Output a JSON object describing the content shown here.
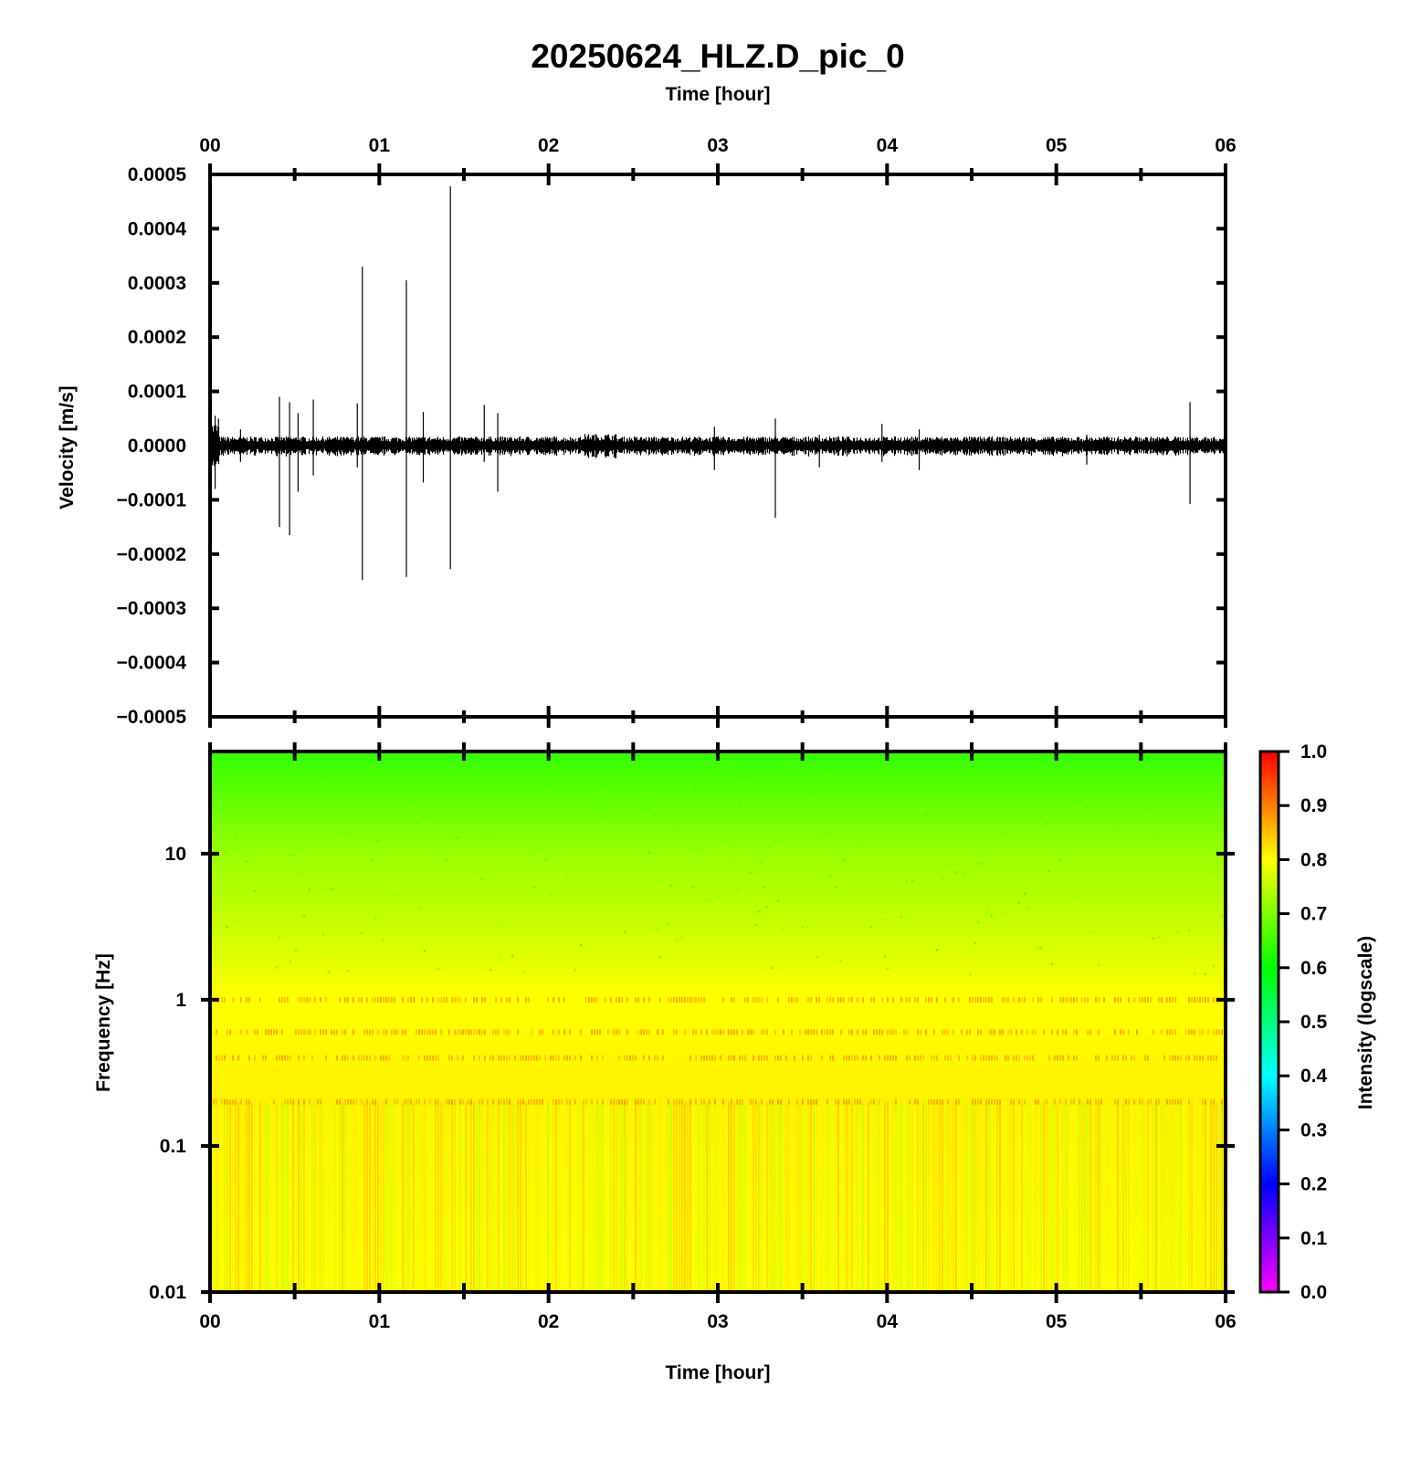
{
  "chart_data": [
    {
      "type": "line",
      "title": "20250624_HLZ.D_pic_0",
      "xlabel": "Time [hour]",
      "ylabel": "Velocity [m/s]",
      "xlim": [
        0,
        6
      ],
      "ylim": [
        -0.0005,
        0.0005
      ],
      "x_ticks": [
        "00",
        "01",
        "02",
        "03",
        "04",
        "05",
        "06"
      ],
      "y_ticks": [
        "0.0005",
        "0.0004",
        "0.0003",
        "0.0002",
        "0.0001",
        "0.0000",
        "−0.0001",
        "−0.0002",
        "−0.0003",
        "−0.0004",
        "−0.0005"
      ],
      "y_tick_values": [
        0.0005,
        0.0004,
        0.0003,
        0.0002,
        0.0001,
        0,
        -0.0001,
        -0.0002,
        -0.0003,
        -0.0004,
        -0.0005
      ],
      "noise_amplitude": 1.2e-05,
      "spikes": [
        {
          "x": 0.03,
          "ymax": 5.5e-05,
          "ymin": -8e-05
        },
        {
          "x": 0.05,
          "ymax": 5e-05,
          "ymin": -3e-05
        },
        {
          "x": 0.18,
          "ymax": 3e-05,
          "ymin": -3e-05
        },
        {
          "x": 0.41,
          "ymax": 9e-05,
          "ymin": -0.00015
        },
        {
          "x": 0.47,
          "ymax": 8e-05,
          "ymin": -0.000165
        },
        {
          "x": 0.52,
          "ymax": 6e-05,
          "ymin": -8.5e-05
        },
        {
          "x": 0.61,
          "ymax": 8.5e-05,
          "ymin": -5.5e-05
        },
        {
          "x": 0.87,
          "ymax": 7.8e-05,
          "ymin": -4e-05
        },
        {
          "x": 0.9,
          "ymax": 0.00033,
          "ymin": -0.000248
        },
        {
          "x": 1.16,
          "ymax": 0.000305,
          "ymin": -0.000242
        },
        {
          "x": 1.26,
          "ymax": 6.2e-05,
          "ymin": -6.8e-05
        },
        {
          "x": 1.42,
          "ymax": 0.000478,
          "ymin": -0.000228
        },
        {
          "x": 1.62,
          "ymax": 7.5e-05,
          "ymin": -3e-05
        },
        {
          "x": 1.7,
          "ymax": 6e-05,
          "ymin": -8.5e-05
        },
        {
          "x": 2.98,
          "ymax": 3.5e-05,
          "ymin": -4.5e-05
        },
        {
          "x": 3.34,
          "ymax": 5e-05,
          "ymin": -0.000133
        },
        {
          "x": 3.6,
          "ymax": 2e-05,
          "ymin": -4e-05
        },
        {
          "x": 3.97,
          "ymax": 4e-05,
          "ymin": -3e-05
        },
        {
          "x": 4.19,
          "ymax": 3e-05,
          "ymin": -4.5e-05
        },
        {
          "x": 5.18,
          "ymax": 2e-05,
          "ymin": -3.5e-05
        },
        {
          "x": 5.79,
          "ymax": 8e-05,
          "ymin": -0.000108
        }
      ]
    },
    {
      "type": "heatmap",
      "xlabel": "Time [hour]",
      "ylabel": "Frequency [Hz]",
      "xlim": [
        0,
        6
      ],
      "ylim": [
        0.01,
        50
      ],
      "yscale": "log",
      "x_ticks": [
        "00",
        "01",
        "02",
        "03",
        "04",
        "05",
        "06"
      ],
      "y_ticks": [
        "10",
        "1",
        "0.1",
        "0.01"
      ],
      "y_tick_values": [
        10,
        1,
        0.1,
        0.01
      ],
      "colorbar": {
        "label": "Intensity (logscale)",
        "range": [
          0,
          1
        ],
        "ticks": [
          "1.0",
          "0.9",
          "0.8",
          "0.7",
          "0.6",
          "0.5",
          "0.4",
          "0.3",
          "0.2",
          "0.1",
          "0.0"
        ],
        "tick_values": [
          1.0,
          0.9,
          0.8,
          0.7,
          0.6,
          0.5,
          0.4,
          0.3,
          0.2,
          0.1,
          0.0
        ],
        "colormap": [
          "#ff00ff",
          "#7f00ff",
          "#0000ff",
          "#007fff",
          "#00ffff",
          "#00ff7f",
          "#00ff00",
          "#7fff00",
          "#ffff00",
          "#ff7f00",
          "#ff0000"
        ]
      },
      "intensity_profile": [
        {
          "f": 50,
          "v": 0.64
        },
        {
          "f": 10,
          "v": 0.72
        },
        {
          "f": 3,
          "v": 0.76
        },
        {
          "f": 1,
          "v": 0.8
        },
        {
          "f": 0.2,
          "v": 0.81
        },
        {
          "f": 0.01,
          "v": 0.8
        }
      ],
      "band_frequencies": [
        1.0,
        0.6,
        0.4,
        0.2
      ]
    }
  ]
}
